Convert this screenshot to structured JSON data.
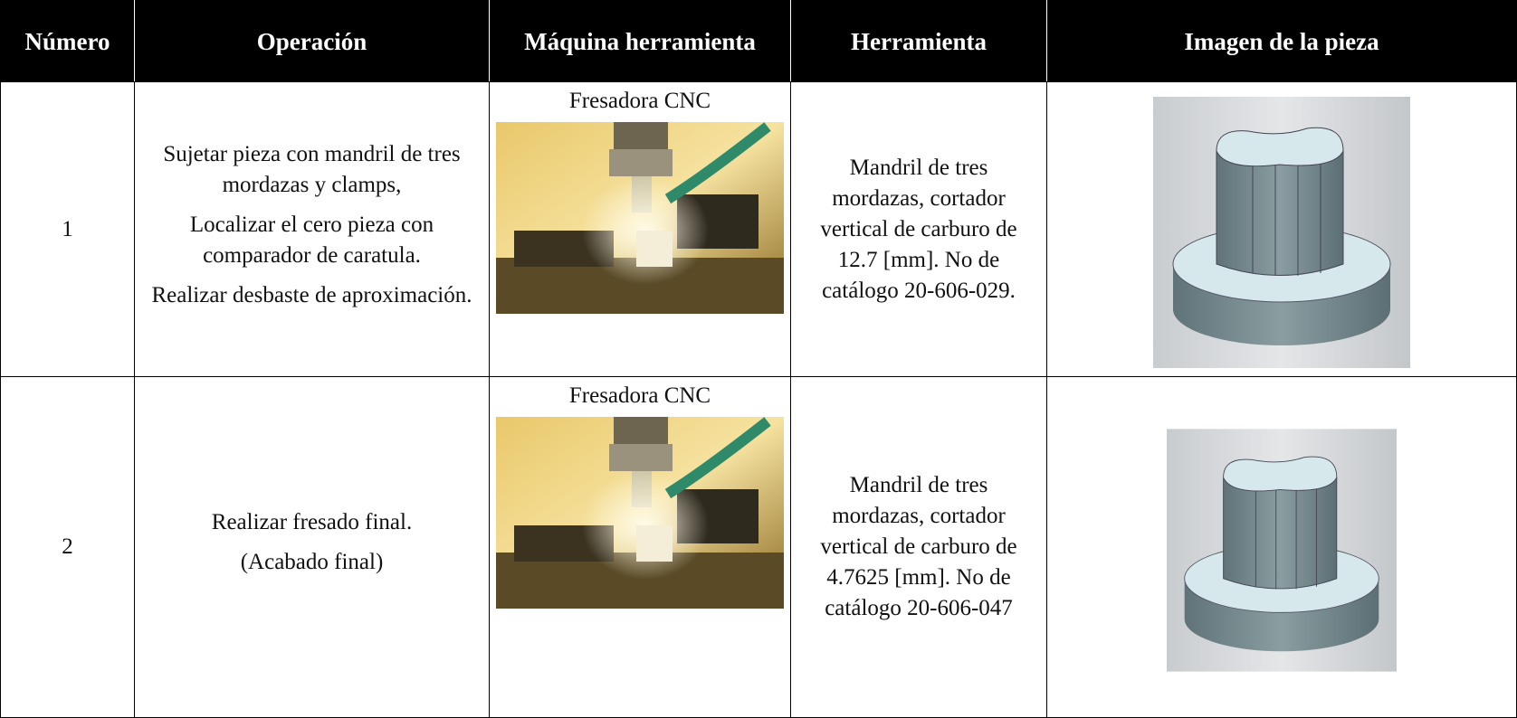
{
  "table": {
    "header": [
      "Número",
      "Operación",
      "Máquina herramienta",
      "Herramienta",
      "Imagen de la pieza"
    ],
    "rows": [
      {
        "number": "1",
        "operation": [
          "Sujetar pieza con mandril de tres mordazas y clamps,",
          "Localizar el cero pieza con comparador de caratula.",
          "Realizar desbaste de aproximación."
        ],
        "machine": "Fresadora CNC",
        "tool": "Mandril de tres mordazas, cortador vertical de carburo de  12.7 [mm]. No de catálogo 20-606-029."
      },
      {
        "number": "2",
        "operation": [
          "Realizar fresado final.",
          "(Acabado final)"
        ],
        "machine": "Fresadora CNC",
        "tool": "Mandril de tres mordazas, cortador vertical de carburo de  4.7625 [mm]. No de catálogo 20-606-047"
      }
    ]
  }
}
